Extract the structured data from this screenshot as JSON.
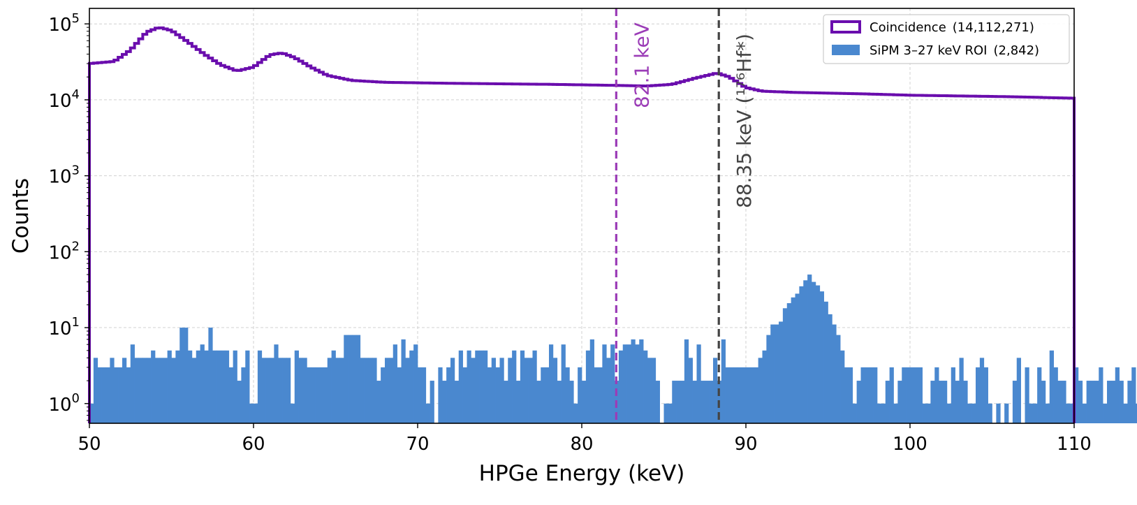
{
  "chart_data": {
    "type": "bar",
    "title": "",
    "xlabel": "HPGe Energy (keV)",
    "ylabel": "Counts",
    "xlim": [
      50,
      110
    ],
    "ylim": [
      0.55,
      160000
    ],
    "yscale": "log",
    "grid": true,
    "legend_position": "top-right",
    "x_ticks": [
      50,
      60,
      70,
      80,
      90,
      100,
      110
    ],
    "y_ticks": [
      {
        "value": 1,
        "base": "10",
        "exp": "0"
      },
      {
        "value": 10,
        "base": "10",
        "exp": "1"
      },
      {
        "value": 100,
        "base": "10",
        "exp": "2"
      },
      {
        "value": 1000,
        "base": "10",
        "exp": "3"
      },
      {
        "value": 10000,
        "base": "10",
        "exp": "4"
      },
      {
        "value": 100000,
        "base": "10",
        "exp": "5"
      }
    ],
    "bin_start": 50,
    "bin_width": 0.25,
    "series": [
      {
        "name": "Coincidence",
        "count": "(14,112,271)",
        "style": "step",
        "color": "#6a0dad",
        "curve_points": [
          [
            50,
            30000
          ],
          [
            51.5,
            32000
          ],
          [
            52.5,
            45000
          ],
          [
            53.5,
            78000
          ],
          [
            54.25,
            90000
          ],
          [
            55,
            82000
          ],
          [
            56,
            58000
          ],
          [
            57,
            40000
          ],
          [
            58,
            29000
          ],
          [
            59,
            24000
          ],
          [
            60,
            27000
          ],
          [
            61,
            39000
          ],
          [
            61.75,
            41500
          ],
          [
            62.5,
            36000
          ],
          [
            63.5,
            27000
          ],
          [
            64.5,
            21000
          ],
          [
            66,
            18000
          ],
          [
            68,
            17000
          ],
          [
            72,
            16500
          ],
          [
            78,
            16000
          ],
          [
            82,
            15500
          ],
          [
            84,
            15200
          ],
          [
            85.5,
            16000
          ],
          [
            87,
            19500
          ],
          [
            88.25,
            22500
          ],
          [
            89,
            20000
          ],
          [
            90,
            14500
          ],
          [
            91,
            13000
          ],
          [
            93,
            12500
          ],
          [
            97,
            12000
          ],
          [
            100,
            11500
          ],
          [
            106,
            11000
          ],
          [
            110,
            10500
          ]
        ]
      },
      {
        "name": "SiPM 3–27 keV ROI",
        "count": "(2,842)",
        "style": "bar",
        "color": "#4a88cf",
        "values": [
          1,
          4,
          3,
          3,
          3,
          4,
          3,
          3,
          4,
          3,
          6,
          4,
          4,
          4,
          4,
          5,
          4,
          4,
          4,
          5,
          4,
          5,
          10,
          10,
          5,
          4,
          5,
          6,
          5,
          10,
          5,
          5,
          5,
          5,
          3,
          5,
          2,
          3,
          5,
          1,
          1,
          5,
          4,
          4,
          4,
          6,
          4,
          4,
          4,
          1,
          5,
          4,
          4,
          3,
          3,
          3,
          3,
          3,
          4,
          5,
          4,
          4,
          8,
          8,
          8,
          8,
          4,
          4,
          4,
          4,
          2,
          3,
          4,
          4,
          6,
          3,
          7,
          4,
          5,
          6,
          3,
          3,
          1,
          2,
          0,
          3,
          2,
          3,
          4,
          2,
          5,
          3,
          5,
          4,
          5,
          5,
          5,
          3,
          4,
          3,
          4,
          2,
          4,
          5,
          2,
          5,
          4,
          4,
          5,
          2,
          3,
          3,
          6,
          4,
          2,
          6,
          3,
          2,
          1,
          3,
          2,
          5,
          7,
          3,
          3,
          6,
          4,
          6,
          2,
          5,
          6,
          6,
          7,
          6,
          7,
          5,
          4,
          4,
          2,
          0,
          1,
          1,
          2,
          2,
          2,
          7,
          4,
          2,
          6,
          2,
          2,
          2,
          4,
          2,
          7,
          3,
          3,
          3,
          3,
          3,
          3,
          3,
          3,
          4,
          5,
          8,
          11,
          11,
          12,
          18,
          21,
          25,
          28,
          35,
          42,
          50,
          40,
          36,
          30,
          22,
          15,
          11,
          8,
          5,
          3,
          3,
          1,
          2,
          3,
          3,
          3,
          3,
          1,
          1,
          2,
          3,
          1,
          2,
          3,
          3,
          3,
          3,
          3,
          1,
          1,
          2,
          3,
          2,
          2,
          1,
          3,
          2,
          4,
          2,
          1,
          1,
          3,
          4,
          3,
          1,
          0,
          1,
          0,
          1,
          0,
          2,
          4,
          0,
          3,
          1,
          1,
          3,
          2,
          1,
          5,
          3,
          2,
          2,
          1,
          1,
          3,
          2,
          1,
          2,
          2,
          2,
          3,
          1,
          2,
          2,
          3,
          2,
          1,
          2,
          3,
          1,
          5,
          2,
          1,
          4
        ]
      }
    ],
    "annotations": [
      {
        "x": 82.1,
        "label": "82.1 keV",
        "color": "#9b3cb7"
      },
      {
        "x": 88.35,
        "label": "88.35 keV (¹⁷⁶Hf*)",
        "color": "#444444"
      }
    ]
  }
}
